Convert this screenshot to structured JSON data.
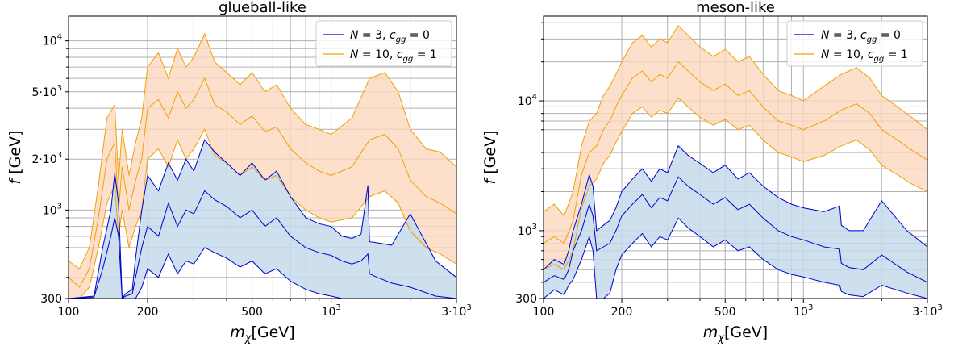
{
  "chart_data": [
    {
      "type": "area",
      "title": "glueball-like",
      "xlabel": "m_χ [GeV]",
      "ylabel": "f [GeV]",
      "xscale": "log",
      "yscale": "log",
      "xlim": [
        100,
        3000
      ],
      "ylim": [
        300,
        14000
      ],
      "grid": true,
      "legend_position": "top-right",
      "xticks": [
        {
          "value": 100,
          "label": "100"
        },
        {
          "value": 200,
          "label": "200"
        },
        {
          "value": 500,
          "label": "500"
        },
        {
          "value": 1000,
          "label": "10",
          "sup": "3"
        },
        {
          "value": 3000,
          "label": "3·10",
          "sup": "3"
        }
      ],
      "yticks": [
        {
          "value": 300,
          "label": "300"
        },
        {
          "value": 1000,
          "label": "10",
          "sup": "3"
        },
        {
          "value": 2000,
          "label": "2·10",
          "sup": "3"
        },
        {
          "value": 5000,
          "label": "5·10",
          "sup": "3"
        },
        {
          "value": 10000,
          "label": "10",
          "sup": "4"
        }
      ],
      "series": [
        {
          "name": "N = 3, c_gg = 0",
          "color": "#0000cc",
          "fill": "#c6dbeb",
          "x": [
            100,
            125,
            135,
            145,
            150,
            155,
            160,
            165,
            170,
            175,
            180,
            190,
            200,
            220,
            240,
            260,
            280,
            300,
            330,
            360,
            400,
            450,
            500,
            560,
            620,
            700,
            800,
            900,
            1000,
            1100,
            1200,
            1300,
            1380,
            1400,
            1500,
            1700,
            2000,
            2500,
            3000
          ],
          "upper": [
            300,
            310,
            600,
            1000,
            1650,
            1100,
            300,
            320,
            330,
            340,
            520,
            1000,
            1600,
            1300,
            1900,
            1500,
            2000,
            1700,
            2600,
            2200,
            1900,
            1600,
            1900,
            1500,
            1700,
            1200,
            900,
            830,
            800,
            700,
            680,
            720,
            1400,
            650,
            640,
            620,
            950,
            500,
            400
          ],
          "mid": [
            300,
            305,
            450,
            700,
            900,
            700,
            300,
            310,
            315,
            320,
            400,
            600,
            800,
            700,
            1100,
            800,
            1000,
            950,
            1300,
            1150,
            1050,
            900,
            1000,
            800,
            900,
            700,
            600,
            560,
            540,
            500,
            480,
            500,
            550,
            420,
            400,
            370,
            350,
            310,
            300
          ],
          "lower": [
            300,
            300,
            300,
            300,
            300,
            300,
            300,
            300,
            300,
            300,
            300,
            350,
            450,
            400,
            550,
            420,
            500,
            480,
            600,
            560,
            520,
            460,
            500,
            420,
            450,
            380,
            340,
            320,
            310,
            300,
            300,
            300,
            300,
            300,
            300,
            300,
            300,
            300,
            300
          ]
        },
        {
          "name": "N = 10, c_gg = 1",
          "color": "#f0a000",
          "fill": "#fcd8be",
          "x": [
            100,
            110,
            120,
            130,
            140,
            150,
            155,
            160,
            170,
            180,
            190,
            200,
            220,
            240,
            260,
            280,
            300,
            330,
            360,
            400,
            450,
            500,
            560,
            620,
            700,
            800,
            900,
            1000,
            1200,
            1400,
            1600,
            1800,
            2000,
            2300,
            2600,
            3000
          ],
          "upper": [
            500,
            450,
            600,
            1400,
            3500,
            4200,
            1500,
            3000,
            1600,
            2500,
            3500,
            7000,
            8500,
            6000,
            9000,
            7000,
            8000,
            11000,
            7500,
            6500,
            5500,
            6500,
            5000,
            5500,
            4000,
            3200,
            3000,
            2800,
            3500,
            6000,
            6500,
            5000,
            3000,
            2300,
            2200,
            1800
          ],
          "mid": [
            400,
            350,
            450,
            900,
            2000,
            2500,
            1000,
            1800,
            1000,
            1500,
            2000,
            4000,
            4500,
            3500,
            5000,
            4000,
            4500,
            6000,
            4200,
            3800,
            3200,
            3600,
            2900,
            3100,
            2300,
            1900,
            1700,
            1600,
            1800,
            2600,
            2800,
            2300,
            1500,
            1200,
            1100,
            950
          ],
          "lower": [
            300,
            300,
            350,
            600,
            1100,
            1400,
            700,
            1000,
            600,
            800,
            1000,
            2000,
            2300,
            1800,
            2600,
            2000,
            2300,
            3000,
            2100,
            1900,
            1600,
            1800,
            1500,
            1600,
            1200,
            1000,
            900,
            850,
            900,
            1200,
            1300,
            1100,
            750,
            600,
            550,
            480
          ]
        }
      ]
    },
    {
      "type": "area",
      "title": "meson-like",
      "xlabel": "m_χ [GeV]",
      "ylabel": "f [GeV]",
      "xscale": "log",
      "yscale": "log",
      "xlim": [
        100,
        3000
      ],
      "ylim": [
        300,
        45000
      ],
      "grid": true,
      "legend_position": "top-right",
      "xticks": [
        {
          "value": 100,
          "label": "100"
        },
        {
          "value": 200,
          "label": "200"
        },
        {
          "value": 500,
          "label": "500"
        },
        {
          "value": 1000,
          "label": "10",
          "sup": "3"
        },
        {
          "value": 3000,
          "label": "3·10",
          "sup": "3"
        }
      ],
      "yticks": [
        {
          "value": 300,
          "label": "300"
        },
        {
          "value": 1000,
          "label": "10",
          "sup": "3"
        },
        {
          "value": 10000,
          "label": "10",
          "sup": "4"
        }
      ],
      "series": [
        {
          "name": "N = 3, c_gg = 0",
          "color": "#0000cc",
          "fill": "#c6dbeb",
          "x": [
            100,
            110,
            120,
            125,
            130,
            140,
            150,
            155,
            160,
            170,
            180,
            190,
            200,
            220,
            240,
            260,
            280,
            300,
            330,
            360,
            400,
            450,
            500,
            560,
            620,
            700,
            800,
            900,
            1000,
            1200,
            1380,
            1400,
            1500,
            1700,
            2000,
            2500,
            3000
          ],
          "upper": [
            500,
            600,
            550,
            700,
            1000,
            1600,
            2700,
            2200,
            1000,
            1100,
            1200,
            1500,
            2000,
            2500,
            3000,
            2400,
            3000,
            2800,
            4500,
            3800,
            3300,
            2800,
            3200,
            2500,
            2800,
            2200,
            1800,
            1600,
            1500,
            1400,
            1550,
            1100,
            1000,
            1000,
            1700,
            1000,
            750
          ],
          "mid": [
            400,
            450,
            420,
            500,
            700,
            1000,
            1600,
            1300,
            700,
            750,
            800,
            1000,
            1300,
            1600,
            1900,
            1500,
            1800,
            1700,
            2600,
            2200,
            1900,
            1600,
            1800,
            1450,
            1600,
            1250,
            1000,
            900,
            850,
            750,
            720,
            560,
            520,
            500,
            650,
            480,
            400
          ],
          "lower": [
            300,
            350,
            320,
            380,
            420,
            600,
            900,
            700,
            300,
            300,
            330,
            500,
            650,
            800,
            950,
            750,
            900,
            850,
            1250,
            1050,
            900,
            750,
            850,
            700,
            750,
            600,
            500,
            460,
            440,
            400,
            380,
            340,
            320,
            310,
            380,
            330,
            300
          ]
        },
        {
          "name": "N = 10, c_gg = 1",
          "color": "#f0a000",
          "fill": "#fcd8be",
          "x": [
            100,
            110,
            120,
            130,
            140,
            150,
            160,
            170,
            180,
            190,
            200,
            220,
            240,
            260,
            280,
            300,
            330,
            360,
            400,
            450,
            500,
            560,
            620,
            700,
            800,
            900,
            1000,
            1200,
            1400,
            1600,
            1800,
            2000,
            2300,
            2600,
            3000
          ],
          "upper": [
            1400,
            1600,
            1300,
            2000,
            4500,
            7000,
            8000,
            11000,
            13000,
            16000,
            20000,
            28000,
            32000,
            26000,
            30000,
            28000,
            38000,
            32000,
            26000,
            22000,
            25000,
            20000,
            22000,
            16000,
            12000,
            11000,
            10000,
            13000,
            16000,
            18000,
            15000,
            11000,
            9000,
            7500,
            6000
          ],
          "mid": [
            800,
            900,
            800,
            1200,
            2700,
            4000,
            4500,
            6000,
            7000,
            9000,
            11000,
            15000,
            17000,
            14000,
            16000,
            15000,
            20000,
            17000,
            14000,
            12000,
            13500,
            11000,
            12000,
            9000,
            7000,
            6500,
            6000,
            7000,
            8500,
            9500,
            8000,
            6000,
            5000,
            4200,
            3500
          ],
          "lower": [
            500,
            550,
            500,
            700,
            1500,
            2200,
            2500,
            3300,
            3800,
            4800,
            5800,
            8000,
            9000,
            7500,
            8500,
            8000,
            10500,
            9000,
            7500,
            6500,
            7200,
            6000,
            6500,
            5000,
            4000,
            3700,
            3400,
            3800,
            4500,
            5000,
            4200,
            3200,
            2700,
            2300,
            2000
          ]
        }
      ]
    }
  ]
}
